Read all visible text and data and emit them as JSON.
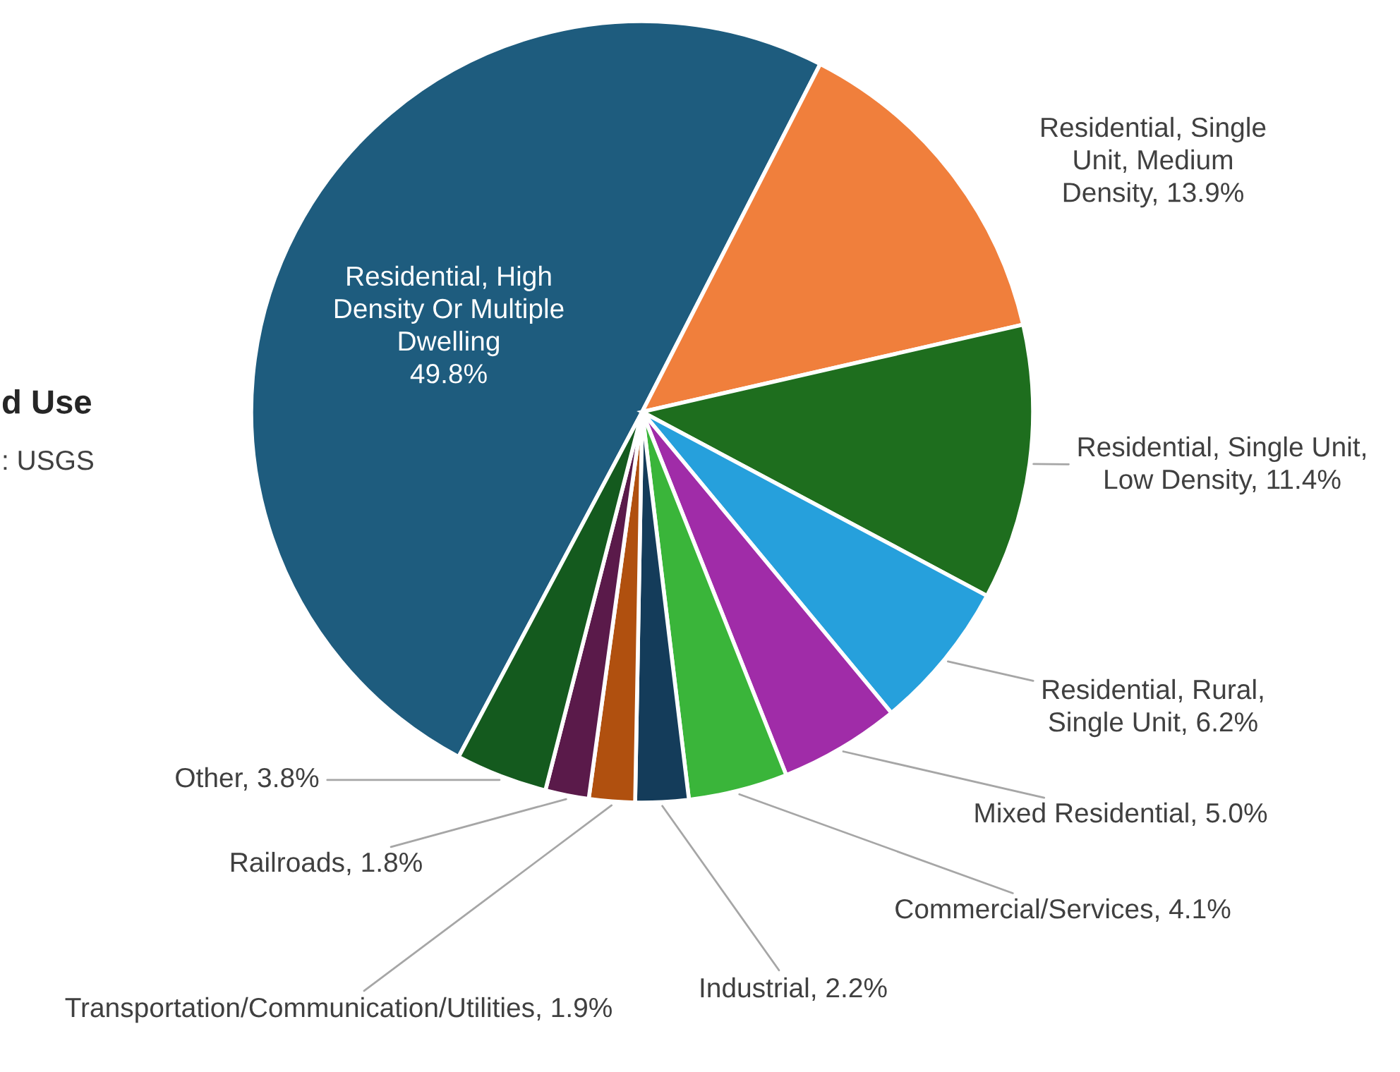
{
  "chart_data": {
    "type": "pie",
    "categories": [
      "Residential, High Density Or Multiple Dwelling",
      "Residential, Single Unit, Medium Density",
      "Residential, Single Unit, Low Density",
      "Residential, Rural, Single Unit",
      "Mixed Residential",
      "Commercial/Services",
      "Industrial",
      "Transportation/Communication/Utilities",
      "Railroads",
      "Other"
    ],
    "values": [
      49.8,
      13.9,
      11.4,
      6.2,
      5.0,
      4.1,
      2.2,
      1.9,
      1.8,
      3.8
    ],
    "value_labels": [
      "49.8%",
      "13.9%",
      "11.4%",
      "6.2%",
      "5.0%",
      "4.1%",
      "2.2%",
      "1.9%",
      "1.8%",
      "3.8%"
    ],
    "colors": [
      "#1e5c7e",
      "#f07f3c",
      "#1e6e1e",
      "#26a0dc",
      "#a02ca8",
      "#3ab53a",
      "#143c5a",
      "#b0500f",
      "#5a1a4a",
      "#145a1e"
    ],
    "annotations": [
      "d Use",
      ": USGS"
    ]
  }
}
